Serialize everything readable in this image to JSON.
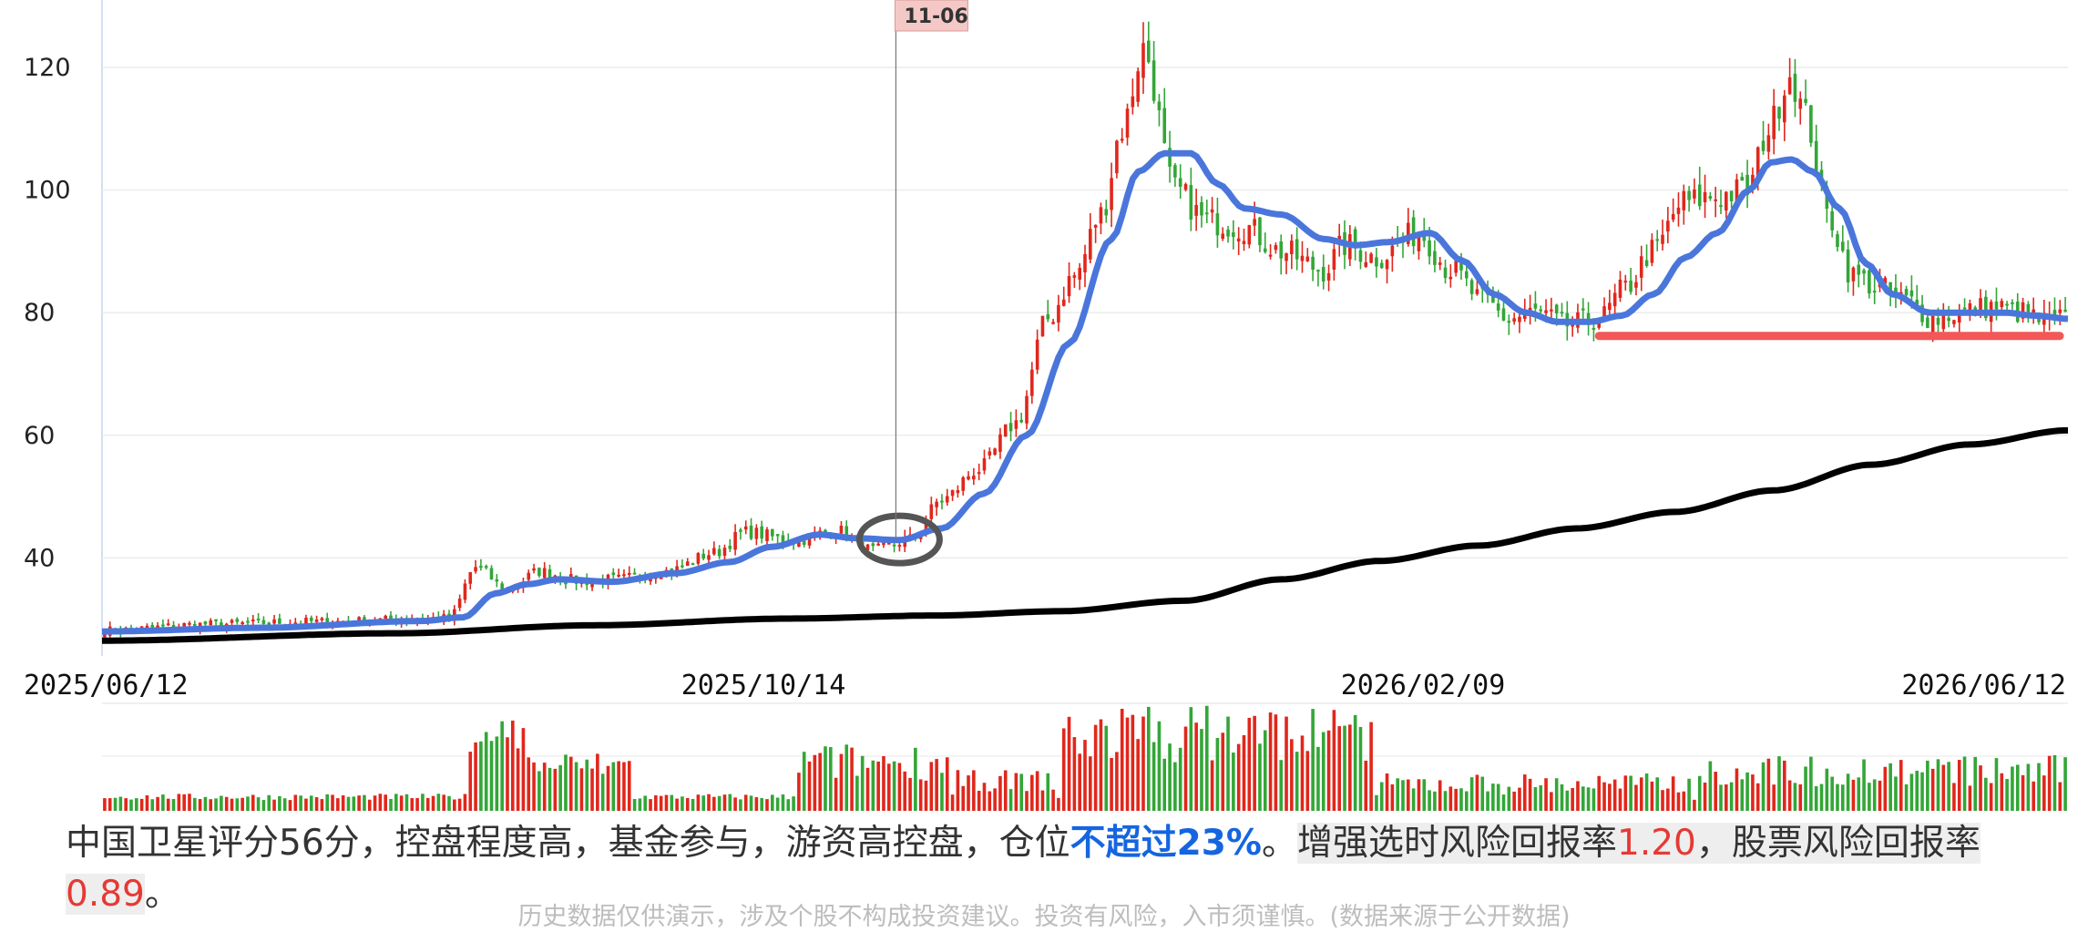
{
  "chart_data": {
    "type": "candlestick",
    "y_ticks": [
      40,
      60,
      80,
      100,
      120
    ],
    "ylim": [
      24,
      131
    ],
    "x_tick_labels": [
      "2025/06/12",
      "2025/10/14",
      "2026/02/09",
      "2026/06/12"
    ],
    "crosshair_label": "11-06",
    "waypoints": {
      "close": [
        [
          0,
          28.2
        ],
        [
          20,
          29.2
        ],
        [
          40,
          29.6
        ],
        [
          65,
          30.2
        ],
        [
          70,
          38.5
        ],
        [
          76,
          34.8
        ],
        [
          82,
          37.8
        ],
        [
          90,
          36.2
        ],
        [
          96,
          36.5
        ],
        [
          106,
          37.8
        ],
        [
          115,
          40.8
        ],
        [
          121,
          44.2
        ],
        [
          130,
          42.8
        ],
        [
          138,
          44.5
        ],
        [
          145,
          41.2
        ],
        [
          152,
          43
        ],
        [
          158,
          49.5
        ],
        [
          165,
          54.5
        ],
        [
          172,
          62
        ],
        [
          178,
          79
        ],
        [
          183,
          86
        ],
        [
          188,
          96
        ],
        [
          192,
          110
        ],
        [
          196,
          123
        ],
        [
          202,
          100
        ],
        [
          208,
          95
        ],
        [
          215,
          94
        ],
        [
          222,
          90
        ],
        [
          230,
          87
        ],
        [
          234,
          91
        ],
        [
          240,
          89
        ],
        [
          248,
          93
        ],
        [
          254,
          87
        ],
        [
          260,
          82
        ],
        [
          265,
          79
        ],
        [
          270,
          80
        ],
        [
          276,
          78
        ],
        [
          282,
          79
        ],
        [
          287,
          84
        ],
        [
          292,
          90
        ],
        [
          298,
          98
        ],
        [
          304,
          99
        ],
        [
          310,
          100
        ],
        [
          314,
          110
        ],
        [
          318,
          119
        ],
        [
          321,
          112
        ],
        [
          325,
          96
        ],
        [
          330,
          86
        ],
        [
          335,
          84
        ],
        [
          340,
          82
        ],
        [
          345,
          79
        ],
        [
          350,
          80
        ],
        [
          356,
          81
        ],
        [
          362,
          80
        ],
        [
          366,
          78.5
        ],
        [
          370,
          79
        ]
      ],
      "ma_short": [
        [
          0,
          28
        ],
        [
          30,
          28.6
        ],
        [
          60,
          29.7
        ],
        [
          68,
          30.3
        ],
        [
          74,
          34.2
        ],
        [
          80,
          35.7
        ],
        [
          86,
          36.5
        ],
        [
          96,
          36.1
        ],
        [
          108,
          37.5
        ],
        [
          118,
          39.3
        ],
        [
          126,
          41.8
        ],
        [
          135,
          43.8
        ],
        [
          142,
          43.2
        ],
        [
          150,
          42.9
        ],
        [
          158,
          44.8
        ],
        [
          166,
          50.5
        ],
        [
          174,
          60
        ],
        [
          182,
          75
        ],
        [
          190,
          92
        ],
        [
          195,
          103
        ],
        [
          200,
          106
        ],
        [
          205,
          106
        ],
        [
          210,
          101
        ],
        [
          215,
          97
        ],
        [
          222,
          96
        ],
        [
          230,
          92
        ],
        [
          236,
          91
        ],
        [
          242,
          91.5
        ],
        [
          250,
          93
        ],
        [
          256,
          88.5
        ],
        [
          262,
          83
        ],
        [
          268,
          80
        ],
        [
          274,
          78.5
        ],
        [
          280,
          78.5
        ],
        [
          286,
          79.5
        ],
        [
          292,
          83
        ],
        [
          298,
          89
        ],
        [
          304,
          93
        ],
        [
          310,
          100
        ],
        [
          314,
          104.5
        ],
        [
          318,
          105
        ],
        [
          322,
          103
        ],
        [
          327,
          97
        ],
        [
          332,
          88
        ],
        [
          337,
          83
        ],
        [
          344,
          80
        ],
        [
          352,
          80
        ],
        [
          358,
          80
        ],
        [
          364,
          79.5
        ],
        [
          370,
          79
        ]
      ],
      "ma_long": [
        [
          0,
          26.5
        ],
        [
          60,
          27.7
        ],
        [
          100,
          29
        ],
        [
          140,
          30.1
        ],
        [
          170,
          30.6
        ],
        [
          195,
          31.3
        ],
        [
          220,
          33
        ],
        [
          240,
          36.5
        ],
        [
          260,
          39.5
        ],
        [
          280,
          42
        ],
        [
          300,
          44.8
        ],
        [
          320,
          47.5
        ],
        [
          340,
          51
        ],
        [
          360,
          55.2
        ],
        [
          380,
          58.5
        ],
        [
          400,
          60.8
        ]
      ]
    },
    "support_level": 76.2,
    "annotation_circle_bar": 150
  },
  "summary": {
    "lead": "中国卫星评分56分，控盘程度高，基金参与，游资高控盘，仓位",
    "position": "不超过23%",
    "mid": "。",
    "ratio_label": "增强选时风险回报率",
    "ratio_value": "1.20",
    "comma": "，",
    "stock_label": "股票风险回报率",
    "stock_value": "0.89",
    "end": "。"
  },
  "disclaimer": "历史数据仅供演示，涉及个股不构成投资建议。投资有风险，入市须谨慎。(数据来源于公开数据)",
  "colors": {
    "up": "#e0271c",
    "down": "#33a637",
    "ma_short": "#4a76dc",
    "ma_long": "#000000",
    "support": "#f25858",
    "crosshair_tag_bg": "#f4c8c6"
  }
}
